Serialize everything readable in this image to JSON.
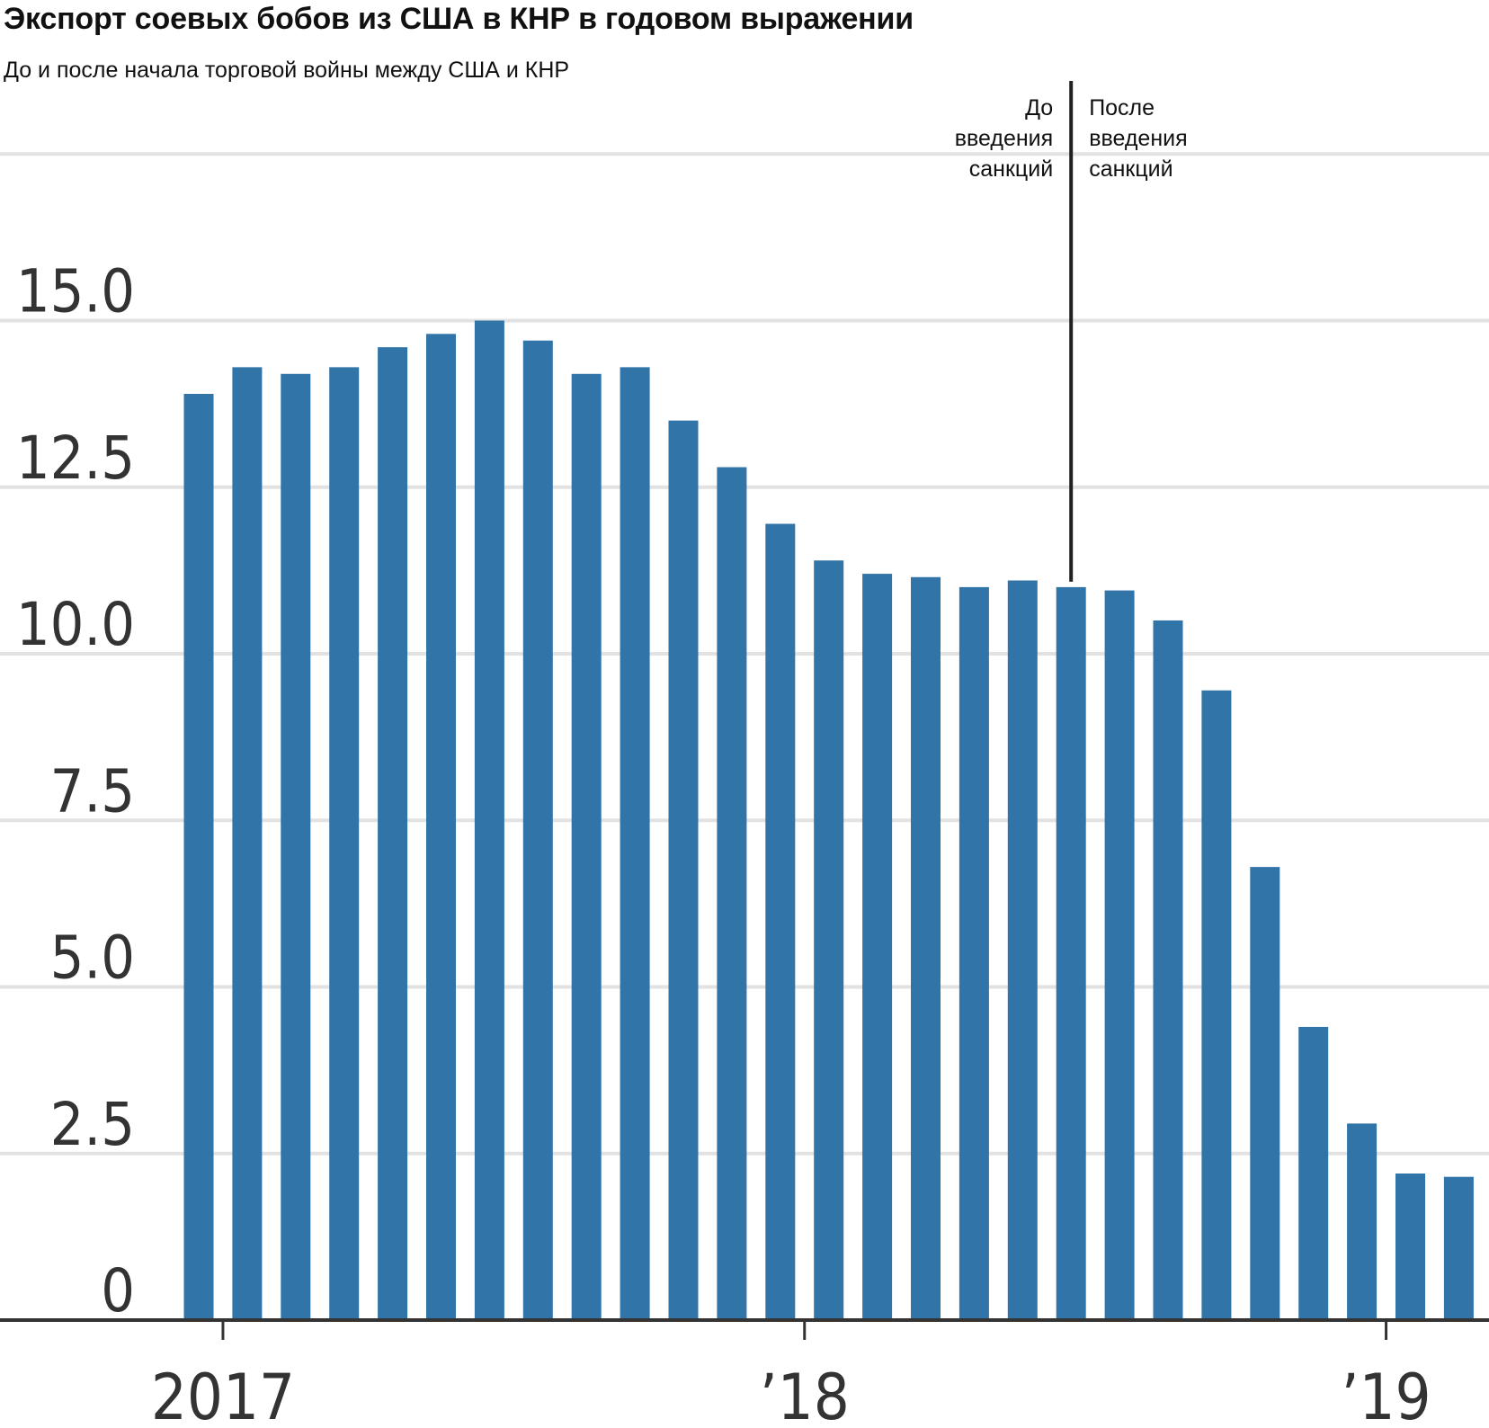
{
  "title": "Экспорт соевых бобов из США в КНР в годовом выражении",
  "subtitle": "До и после начала торговой войны между США и КНР",
  "annotation": {
    "before_lines": [
      "До",
      "введения",
      "санкций"
    ],
    "after_lines": [
      "После",
      "введения",
      "санкций"
    ],
    "month_index": 18
  },
  "colors": {
    "bar": "#3174a8",
    "grid": "#e2e2e2",
    "axis": "#333333",
    "marker": "#222222"
  },
  "chart_data": {
    "type": "bar",
    "title": "Экспорт соевых бобов из США в КНР в годовом выражении",
    "subtitle": "До и после начала торговой войны между США и КНР",
    "xlabel": "",
    "ylabel": "",
    "ylim": [
      0,
      17.5
    ],
    "yticks": [
      0,
      2.5,
      5.0,
      7.5,
      10.0,
      12.5,
      15.0
    ],
    "ytick_labels": [
      "0",
      "2.5",
      "5.0",
      "7.5",
      "10.0",
      "12.5",
      "15.0"
    ],
    "grid": true,
    "xtick_labels": [
      {
        "label": "2017",
        "month_index": 1
      },
      {
        "label": "’18",
        "month_index": 13
      },
      {
        "label": "’19",
        "month_index": 25
      }
    ],
    "values": [
      13.9,
      14.3,
      14.2,
      14.3,
      14.6,
      14.8,
      15.0,
      14.7,
      14.2,
      14.3,
      13.5,
      12.8,
      11.95,
      11.4,
      11.2,
      11.15,
      11.0,
      11.1,
      11.0,
      10.95,
      10.5,
      9.45,
      6.8,
      4.4,
      2.95,
      2.2,
      2.15
    ]
  }
}
